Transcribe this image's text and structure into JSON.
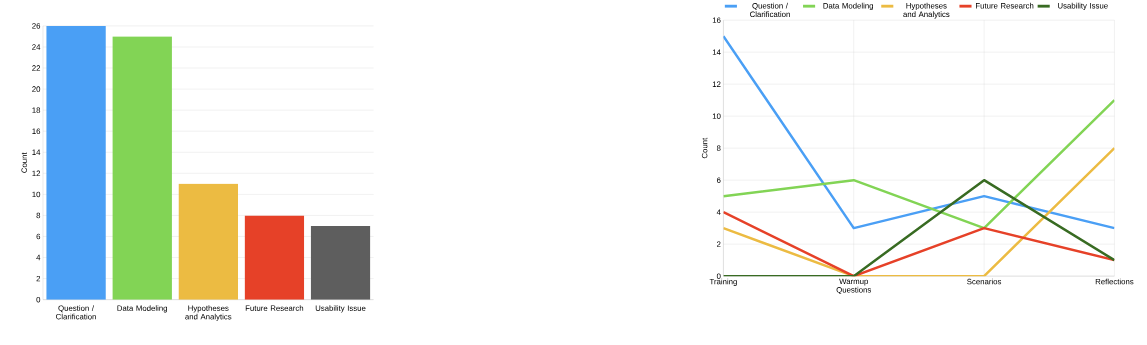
{
  "chart_data": [
    {
      "type": "bar",
      "ylabel": "Count",
      "categories": [
        "Question / Clarification",
        "Data Modeling",
        "Hypotheses and Analytics",
        "Future Research",
        "Usability Issue"
      ],
      "values": [
        26,
        25,
        11,
        8,
        7
      ],
      "colors": [
        "#4a9ff5",
        "#82d455",
        "#ecbb42",
        "#e64128",
        "#5e5e5e"
      ],
      "ylim": [
        0,
        26
      ],
      "yticks": [
        0,
        2,
        4,
        6,
        8,
        10,
        12,
        14,
        16,
        18,
        20,
        22,
        24,
        26
      ],
      "grid": "y"
    },
    {
      "type": "line",
      "ylabel": "Count",
      "categories": [
        "Training",
        "Warmup Questions",
        "Scenarios",
        "Reflections"
      ],
      "series": [
        {
          "name": "Question / Clarification",
          "color": "#4a9ff5",
          "values": [
            15,
            3,
            5,
            3
          ]
        },
        {
          "name": "Data Modeling",
          "color": "#82d455",
          "values": [
            5,
            6,
            3,
            11
          ]
        },
        {
          "name": "Hypotheses and Analytics",
          "color": "#ecbb42",
          "values": [
            3,
            0,
            0,
            8
          ]
        },
        {
          "name": "Future Research",
          "color": "#e64128",
          "values": [
            4,
            0,
            3,
            1
          ]
        },
        {
          "name": "Usability Issue",
          "color": "#386b22",
          "values": [
            0,
            0,
            6,
            1
          ]
        }
      ],
      "ylim": [
        0,
        16
      ],
      "yticks": [
        0,
        2,
        4,
        6,
        8,
        10,
        12,
        14,
        16
      ],
      "grid": true,
      "legend": "top",
      "marker": "none",
      "line_style": "solid"
    }
  ]
}
